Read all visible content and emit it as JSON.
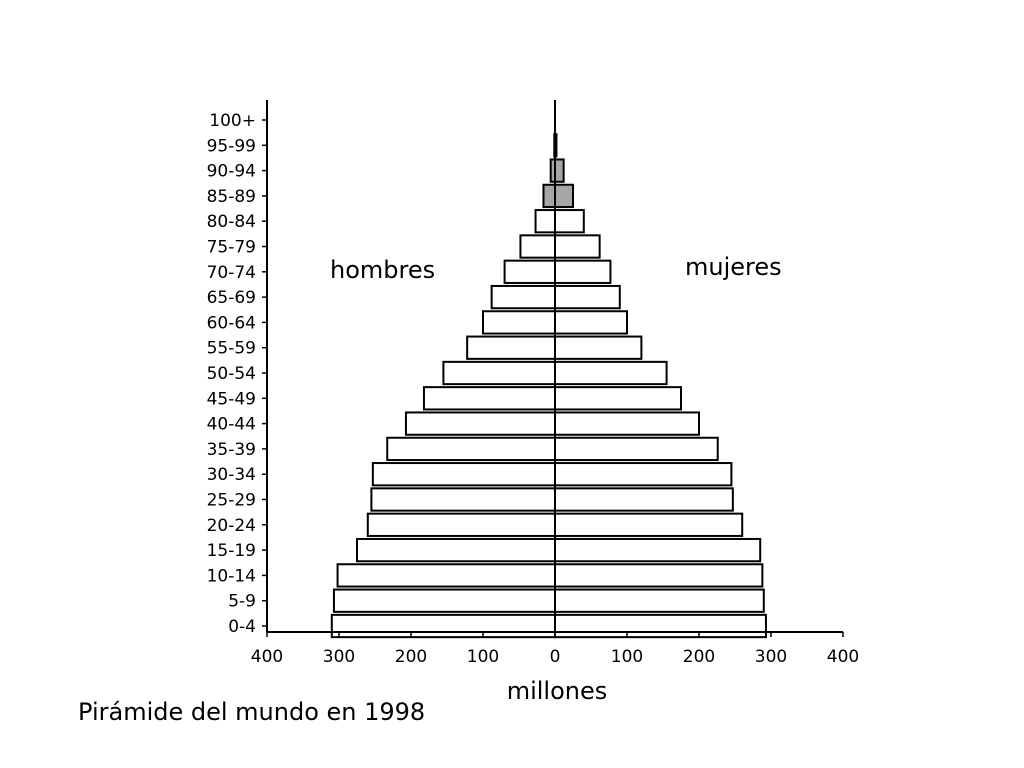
{
  "chart_data": {
    "type": "bar",
    "orientation": "horizontal",
    "layout": "population-pyramid",
    "categories": [
      "0-4",
      "5-9",
      "10-14",
      "15-19",
      "20-24",
      "25-29",
      "30-34",
      "35-39",
      "40-44",
      "45-49",
      "50-54",
      "55-59",
      "60-64",
      "65-69",
      "70-74",
      "75-79",
      "80-84",
      "85-89",
      "90-94",
      "95-99",
      "100+"
    ],
    "series": [
      {
        "name": "hombres",
        "side": "left",
        "values": [
          310,
          307,
          302,
          275,
          260,
          255,
          253,
          233,
          207,
          182,
          155,
          122,
          100,
          88,
          70,
          48,
          27,
          16,
          6,
          1,
          0
        ]
      },
      {
        "name": "mujeres",
        "side": "right",
        "values": [
          293,
          290,
          288,
          285,
          260,
          247,
          245,
          226,
          200,
          175,
          155,
          120,
          100,
          90,
          77,
          62,
          40,
          25,
          12,
          2,
          0
        ]
      }
    ],
    "highlight_categories": [
      "85-89",
      "90-94"
    ],
    "xlabel": "millones",
    "xticks": [
      "400",
      "300",
      "200",
      "100",
      "0",
      "100",
      "200",
      "300",
      "400"
    ],
    "xlim": [
      -400,
      400
    ],
    "grid": false,
    "colors": {
      "bar": "#ffffff",
      "highlight": "#a6a6a6",
      "stroke": "#000000"
    }
  },
  "caption": "Pirámide del mundo en 1998"
}
